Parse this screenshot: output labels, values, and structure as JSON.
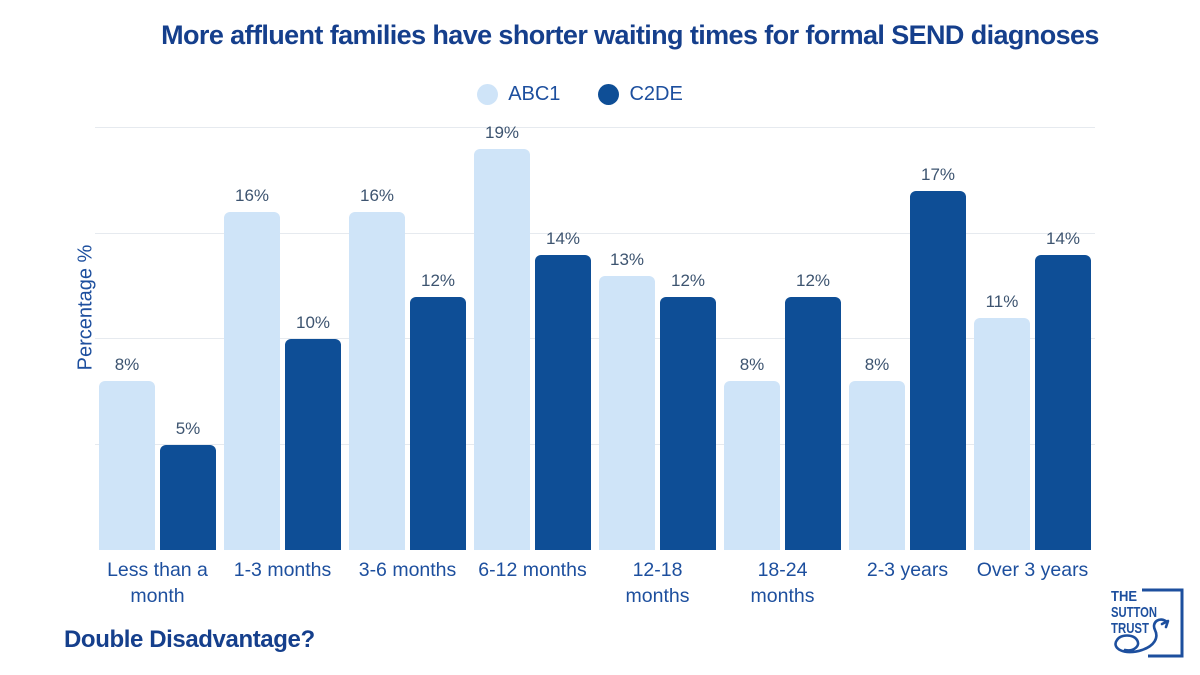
{
  "title": "More affluent families have shorter waiting times for formal SEND diagnoses",
  "footer": "Double Disadvantage?",
  "colors": {
    "abc1": "#cfe4f8",
    "c2de": "#0e4e96",
    "title_text": "#153f8c",
    "axis_text": "#1d4f9e",
    "value_text": "#3d5470",
    "gridline": "#e6eaef",
    "logo_blue": "#1d4f9e"
  },
  "legend": {
    "items": [
      {
        "label": "ABC1",
        "color": "#cfe4f8"
      },
      {
        "label": "C2DE",
        "color": "#0e4e96"
      }
    ]
  },
  "logo": {
    "line1": "THE",
    "line2": "SUTTON",
    "line3": "TRUST"
  },
  "chart_data": {
    "type": "bar",
    "title": "More affluent families have shorter waiting times for formal SEND diagnoses",
    "categories": [
      "Less than a month",
      "1-3 months",
      "3-6 months",
      "6-12 months",
      "12-18 months",
      "18-24 months",
      "2-3 years",
      "Over 3 years"
    ],
    "series": [
      {
        "name": "ABC1",
        "color": "#cfe4f8",
        "values": [
          8,
          16,
          16,
          19,
          13,
          8,
          8,
          11
        ]
      },
      {
        "name": "C2DE",
        "color": "#0e4e96",
        "values": [
          5,
          10,
          12,
          14,
          12,
          12,
          17,
          14
        ]
      }
    ],
    "xlabel": "",
    "ylabel": "Percentage %",
    "ylim": [
      0,
      21
    ],
    "gridlines": [
      5,
      10,
      15,
      20
    ],
    "grid": true,
    "legend_position": "top-center",
    "value_suffix": "%"
  }
}
